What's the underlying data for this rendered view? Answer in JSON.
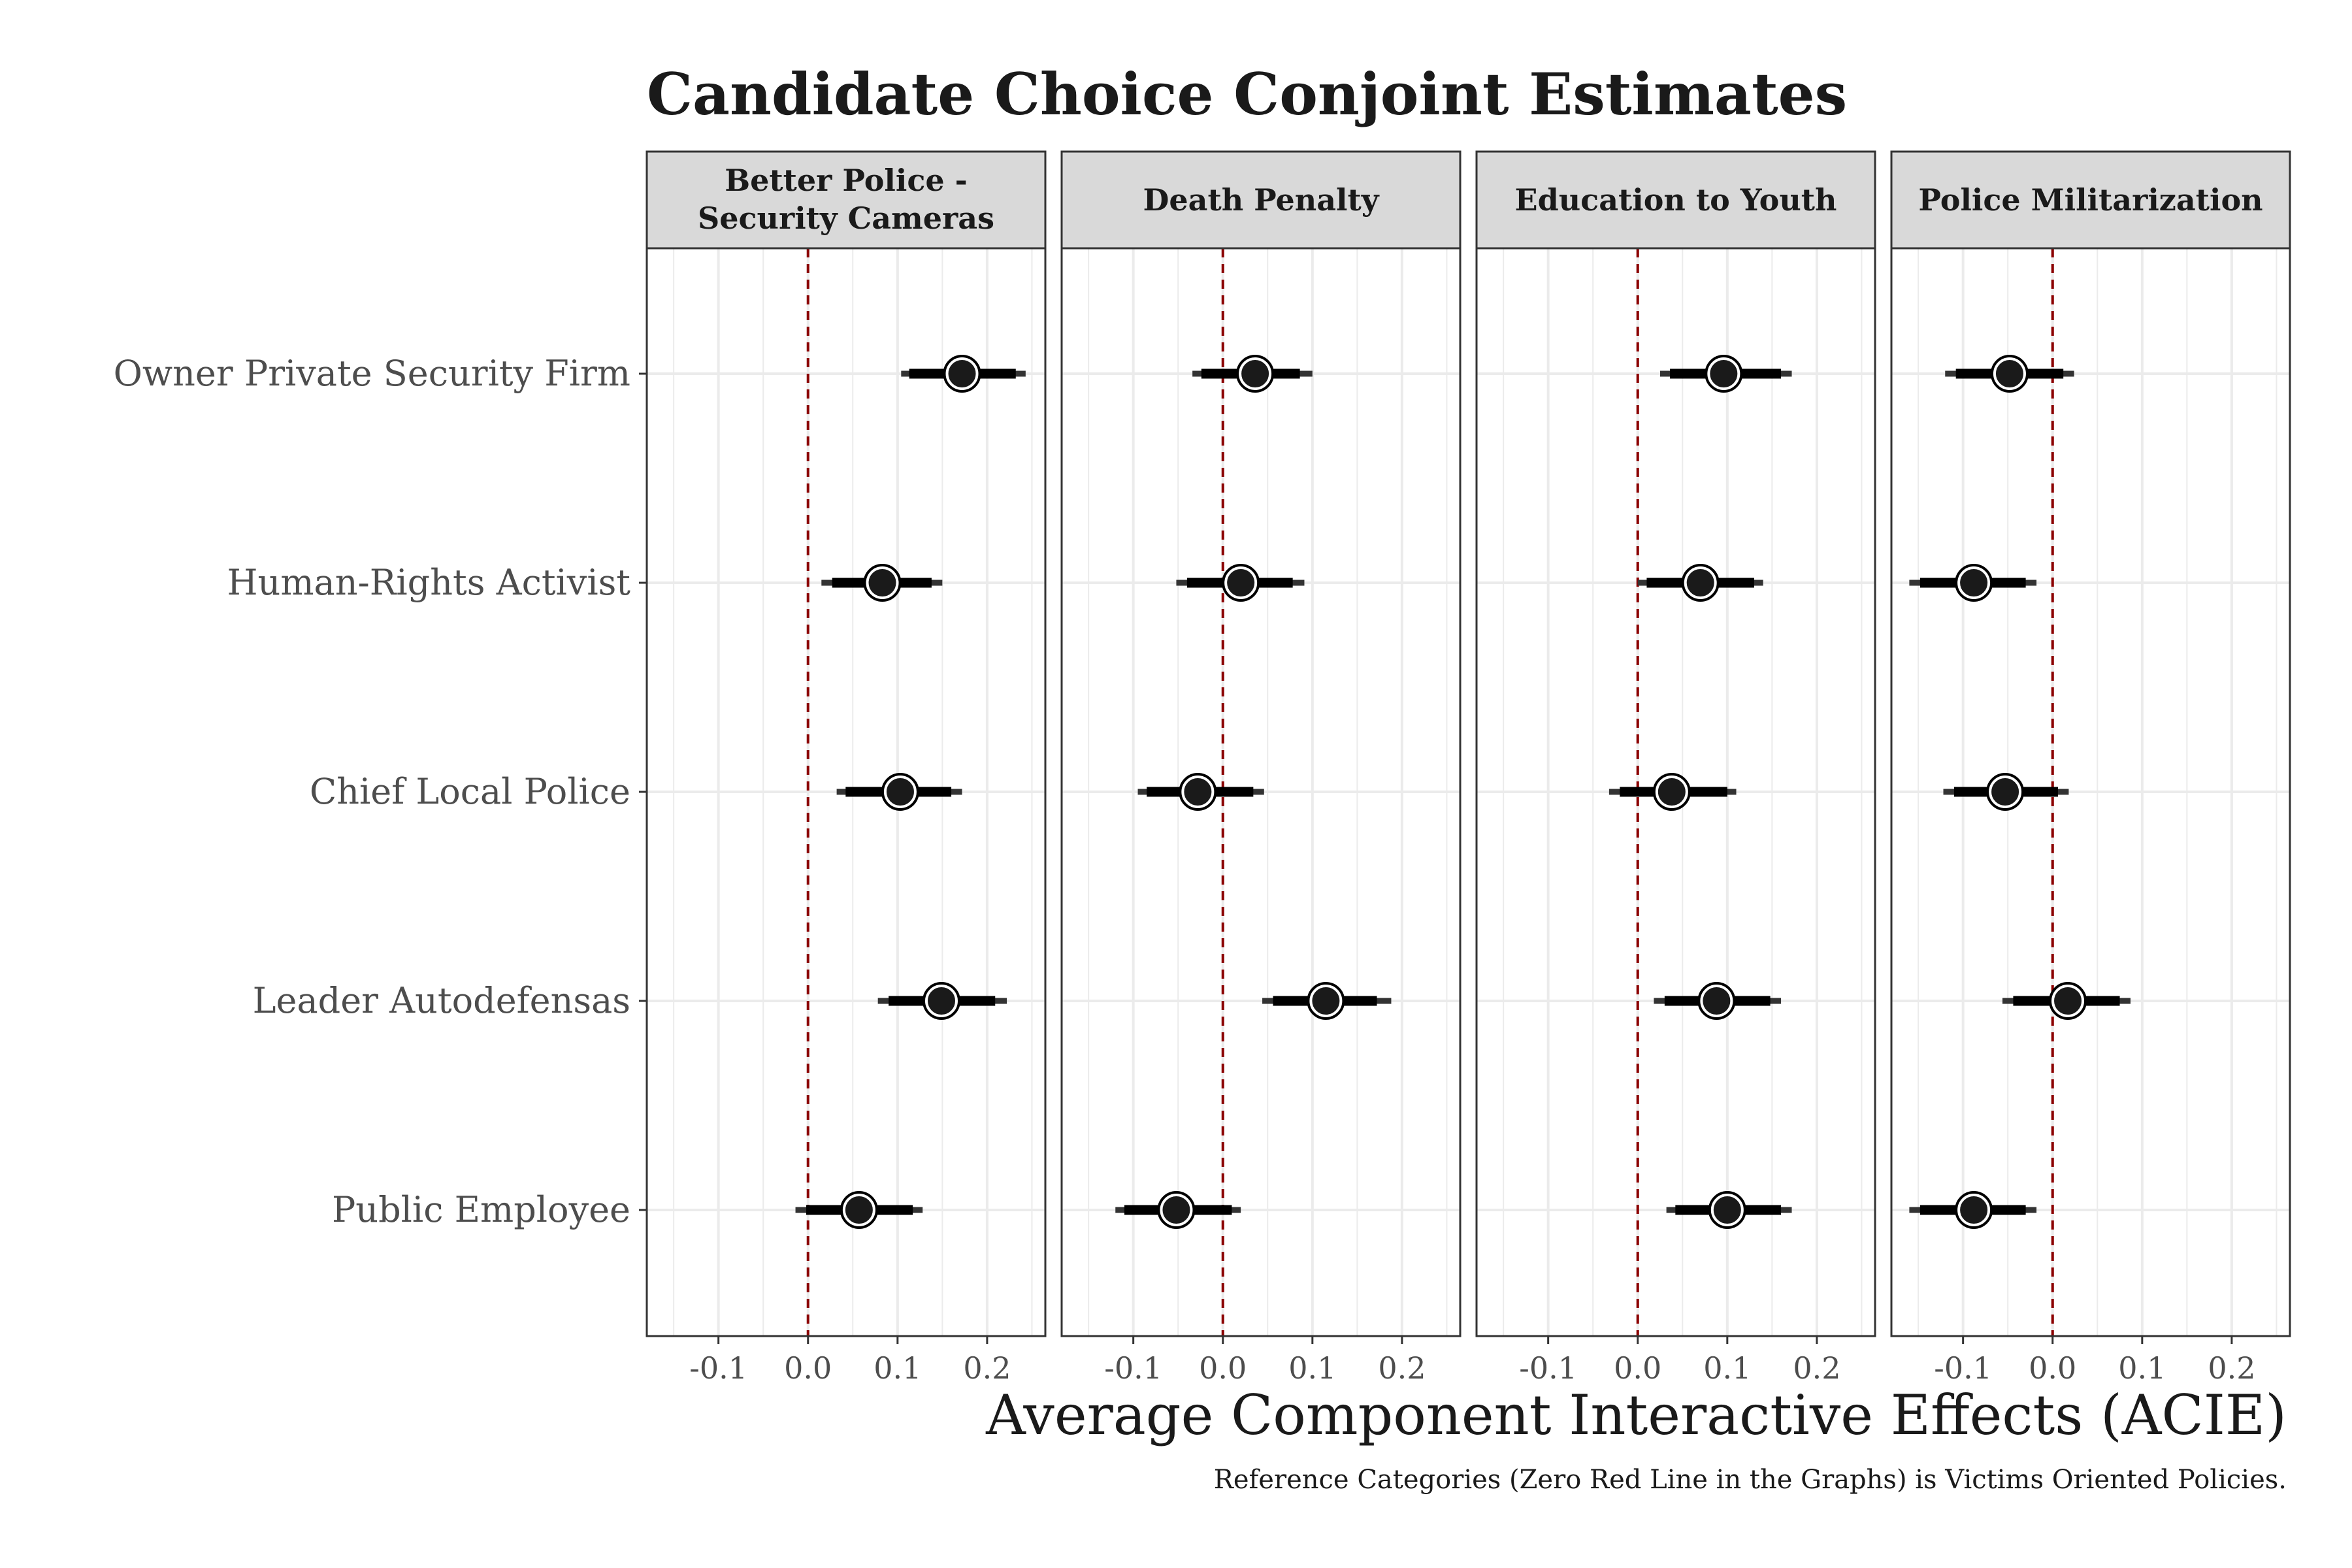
{
  "chart_data": {
    "type": "scatter",
    "title": "Candidate Choice Conjoint Estimates",
    "xlabel": "Average Component Interactive Effects (ACIE)",
    "caption": "Reference Categories (Zero Red Line in the Graphs) is Victims Oriented Policies.",
    "xlim": [
      -0.18,
      0.265
    ],
    "x_ticks": [
      -0.1,
      0.0,
      0.1,
      0.2
    ],
    "x_tick_labels": [
      "-0.1",
      "0.0",
      "0.1",
      "0.2"
    ],
    "reference_line": 0.0,
    "grid": true,
    "categories": [
      "Owner Private Security Firm",
      "Human-Rights Activist",
      "Chief Local Police",
      "Leader Autodefensas",
      "Public Employee"
    ],
    "panels": [
      {
        "title_lines": [
          "Better Police -",
          "Security Cameras"
        ],
        "points": [
          {
            "category": "Owner Private Security Firm",
            "estimate": 0.172,
            "ci90": [
              0.113,
              0.232
            ],
            "ci95": [
              0.104,
              0.243
            ]
          },
          {
            "category": "Human-Rights Activist",
            "estimate": 0.083,
            "ci90": [
              0.027,
              0.138
            ],
            "ci95": [
              0.015,
              0.15
            ]
          },
          {
            "category": "Chief Local Police",
            "estimate": 0.103,
            "ci90": [
              0.042,
              0.16
            ],
            "ci95": [
              0.032,
              0.172
            ]
          },
          {
            "category": "Leader Autodefensas",
            "estimate": 0.149,
            "ci90": [
              0.09,
              0.209
            ],
            "ci95": [
              0.078,
              0.222
            ]
          },
          {
            "category": "Public Employee",
            "estimate": 0.057,
            "ci90": [
              -0.002,
              0.117
            ],
            "ci95": [
              -0.014,
              0.128
            ]
          }
        ]
      },
      {
        "title_lines": [
          "Death Penalty"
        ],
        "points": [
          {
            "category": "Owner Private Security Firm",
            "estimate": 0.036,
            "ci90": [
              -0.024,
              0.086
            ],
            "ci95": [
              -0.034,
              0.1
            ]
          },
          {
            "category": "Human-Rights Activist",
            "estimate": 0.02,
            "ci90": [
              -0.04,
              0.078
            ],
            "ci95": [
              -0.052,
              0.091
            ]
          },
          {
            "category": "Chief Local Police",
            "estimate": -0.028,
            "ci90": [
              -0.085,
              0.034
            ],
            "ci95": [
              -0.095,
              0.046
            ]
          },
          {
            "category": "Leader Autodefensas",
            "estimate": 0.115,
            "ci90": [
              0.056,
              0.172
            ],
            "ci95": [
              0.044,
              0.188
            ]
          },
          {
            "category": "Public Employee",
            "estimate": -0.052,
            "ci90": [
              -0.11,
              0.01
            ],
            "ci95": [
              -0.12,
              0.02
            ]
          }
        ]
      },
      {
        "title_lines": [
          "Education to Youth"
        ],
        "points": [
          {
            "category": "Owner Private Security Firm",
            "estimate": 0.096,
            "ci90": [
              0.036,
              0.16
            ],
            "ci95": [
              0.025,
              0.172
            ]
          },
          {
            "category": "Human-Rights Activist",
            "estimate": 0.07,
            "ci90": [
              0.01,
              0.13
            ],
            "ci95": [
              0.0,
              0.14
            ]
          },
          {
            "category": "Chief Local Police",
            "estimate": 0.038,
            "ci90": [
              -0.02,
              0.1
            ],
            "ci95": [
              -0.032,
              0.11
            ]
          },
          {
            "category": "Leader Autodefensas",
            "estimate": 0.088,
            "ci90": [
              0.03,
              0.148
            ],
            "ci95": [
              0.018,
              0.16
            ]
          },
          {
            "category": "Public Employee",
            "estimate": 0.1,
            "ci90": [
              0.042,
              0.16
            ],
            "ci95": [
              0.032,
              0.172
            ]
          }
        ]
      },
      {
        "title_lines": [
          "Police Militarization"
        ],
        "points": [
          {
            "category": "Owner Private Security Firm",
            "estimate": -0.048,
            "ci90": [
              -0.108,
              0.012
            ],
            "ci95": [
              -0.12,
              0.024
            ]
          },
          {
            "category": "Human-Rights Activist",
            "estimate": -0.088,
            "ci90": [
              -0.148,
              -0.03
            ],
            "ci95": [
              -0.16,
              -0.018
            ]
          },
          {
            "category": "Chief Local Police",
            "estimate": -0.053,
            "ci90": [
              -0.11,
              0.006
            ],
            "ci95": [
              -0.122,
              0.018
            ]
          },
          {
            "category": "Leader Autodefensas",
            "estimate": 0.017,
            "ci90": [
              -0.044,
              0.075
            ],
            "ci95": [
              -0.056,
              0.087
            ]
          },
          {
            "category": "Public Employee",
            "estimate": -0.088,
            "ci90": [
              -0.148,
              -0.03
            ],
            "ci95": [
              -0.16,
              -0.018
            ]
          }
        ]
      }
    ],
    "colors": {
      "reference_line": "#8b0000",
      "strip_fill": "#d9d9d9",
      "point": "#1a1a1a",
      "grid": "#ebebeb",
      "axis_text": "#4d4d4d"
    }
  }
}
